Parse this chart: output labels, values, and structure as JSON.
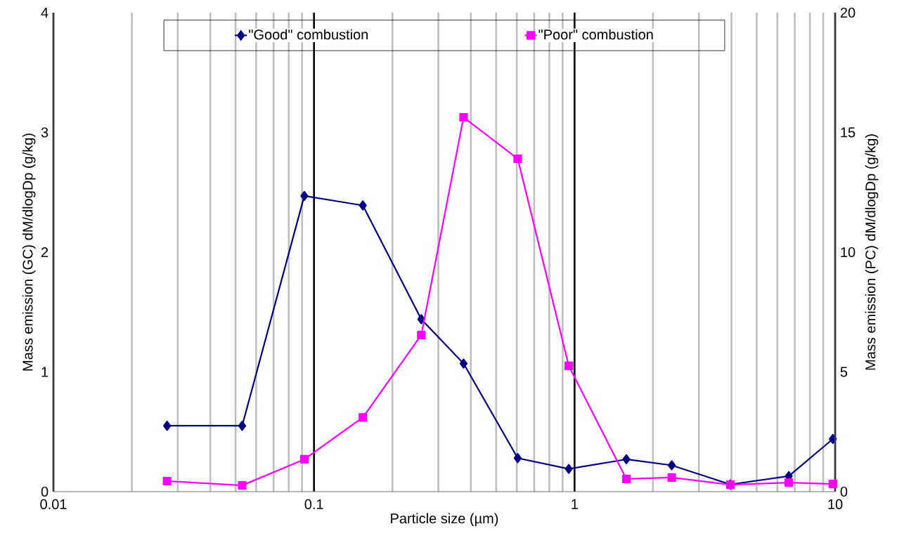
{
  "chart_data": {
    "type": "line",
    "xlabel": "Particle size (µm)",
    "ylabel": "Mass emission (GC) dM/dlogDp (g/kg)",
    "y2label": "Mass emission (PC) dM/dlogDp (g/kg)",
    "log": "x",
    "grid": "x",
    "legend": "top",
    "xlim": [
      0.01,
      10
    ],
    "xticks": [
      0.01,
      0.1,
      1,
      10
    ],
    "ylim": [
      0,
      4
    ],
    "yticks": [
      0,
      1,
      2,
      3,
      4
    ],
    "y2lim": [
      0,
      20
    ],
    "y2ticks": [
      0,
      5,
      10,
      15,
      20
    ],
    "series": [
      {
        "name": "\"Good\" combustion",
        "color": "#000080",
        "marker": "diamond",
        "x": [
          0.0273,
          0.053,
          0.0918,
          0.154,
          0.258,
          0.375,
          0.605,
          0.95,
          1.58,
          2.36,
          3.96,
          6.64,
          9.8
        ],
        "values": [
          0.55,
          0.55,
          2.47,
          2.39,
          1.44,
          1.07,
          0.28,
          0.19,
          0.27,
          0.22,
          0.06,
          0.13,
          0.44
        ]
      },
      {
        "name": "\"Poor\" combustion",
        "color": "#ff00ff",
        "marker": "square",
        "axis": "y2",
        "x": [
          0.0273,
          0.053,
          0.0918,
          0.154,
          0.258,
          0.375,
          0.605,
          0.95,
          1.58,
          2.36,
          3.96,
          6.64,
          9.8
        ],
        "values": [
          0.44,
          0.26,
          1.35,
          3.1,
          6.54,
          15.63,
          13.9,
          5.25,
          0.53,
          0.59,
          0.29,
          0.38,
          0.32
        ]
      }
    ]
  }
}
